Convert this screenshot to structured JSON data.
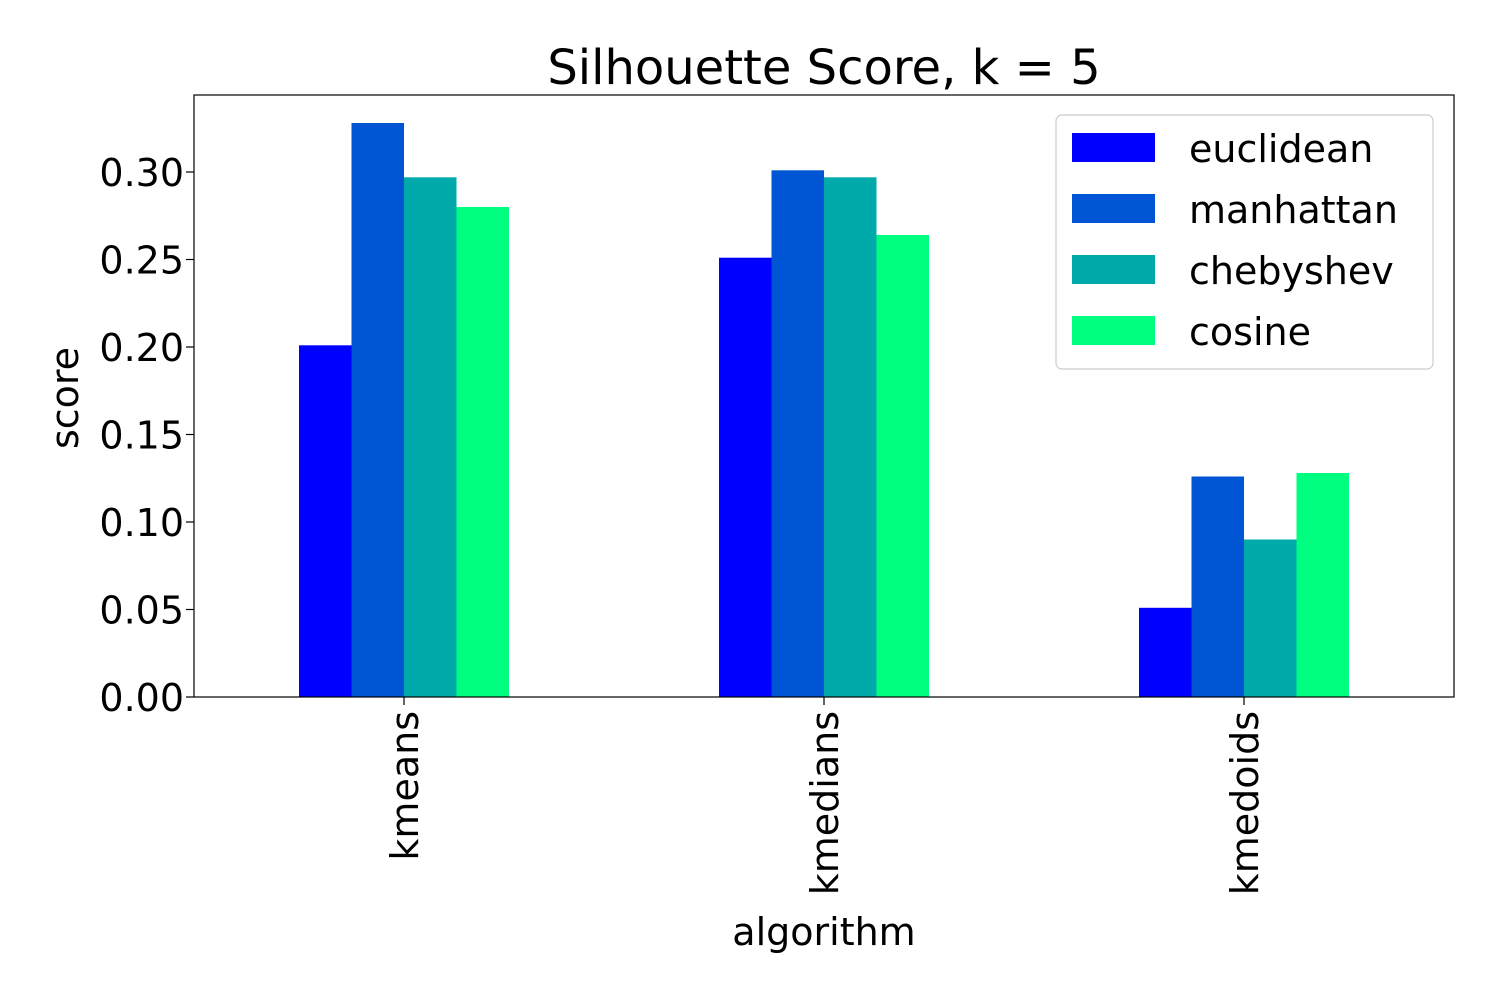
{
  "chart_data": {
    "type": "bar",
    "title": "Silhouette Score, k = 5",
    "xlabel": "algorithm",
    "ylabel": "score",
    "ylim": [
      0,
      0.344
    ],
    "yticks": [
      0.0,
      0.05,
      0.1,
      0.15,
      0.2,
      0.25,
      0.3
    ],
    "ytick_labels": [
      "0.00",
      "0.05",
      "0.10",
      "0.15",
      "0.20",
      "0.25",
      "0.30"
    ],
    "categories": [
      "kmeans",
      "kmedians",
      "kmedoids"
    ],
    "series": [
      {
        "name": "euclidean",
        "color": "#0000ff",
        "values": [
          0.201,
          0.251,
          0.051
        ]
      },
      {
        "name": "manhattan",
        "color": "#0055d4",
        "values": [
          0.328,
          0.301,
          0.126
        ]
      },
      {
        "name": "chebyshev",
        "color": "#00aaaa",
        "values": [
          0.297,
          0.297,
          0.09
        ]
      },
      {
        "name": "cosine",
        "color": "#00ff80",
        "values": [
          0.28,
          0.264,
          0.128
        ]
      }
    ],
    "grid": false,
    "legend_position": "top-right"
  }
}
